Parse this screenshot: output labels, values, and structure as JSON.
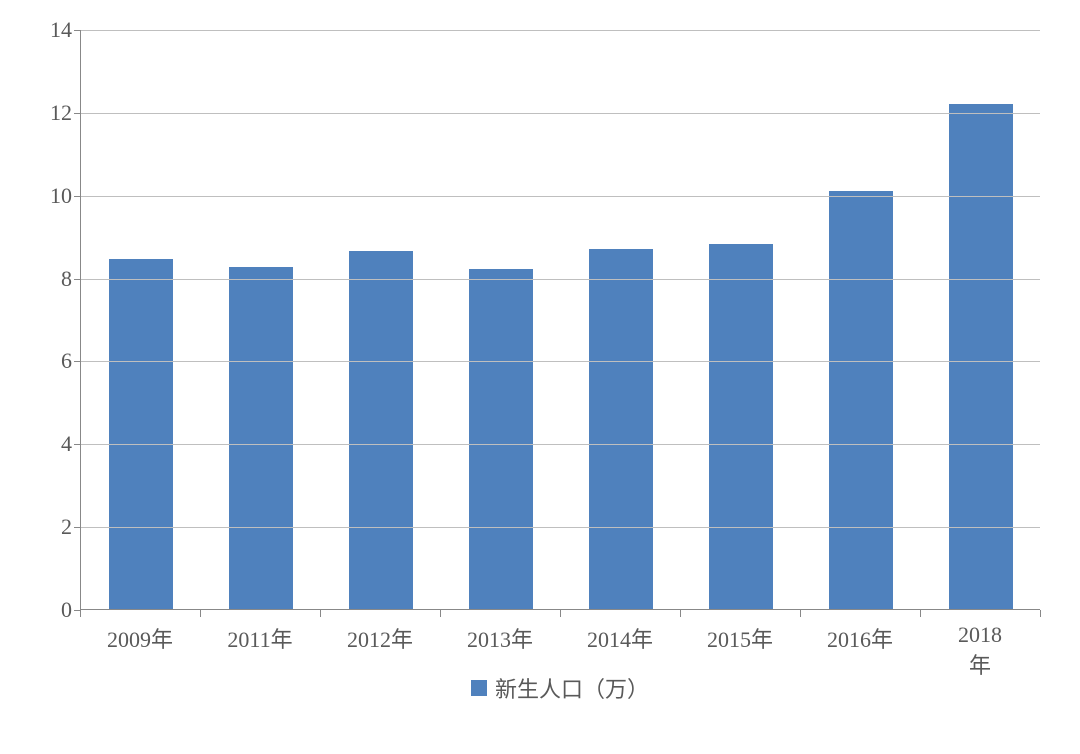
{
  "chart": {
    "type": "bar",
    "background_color": "#ffffff",
    "plot_border_color": "#888888",
    "grid_color": "#bfbfbf",
    "font_family": "SimSun",
    "axis_label_color": "#595959",
    "axis_label_fontsize": 22,
    "y": {
      "min": 0,
      "max": 14,
      "tick_step": 2,
      "ticks": [
        0,
        2,
        4,
        6,
        8,
        10,
        12,
        14
      ]
    },
    "x": {
      "categories": [
        "2009年",
        "2011年",
        "2012年",
        "2013年",
        "2014年",
        "2015年",
        "2016年",
        "2018年"
      ]
    },
    "series": {
      "name": "新生人口（万）",
      "color": "#4f81bd",
      "bar_width_ratio": 0.54,
      "values": [
        8.45,
        8.25,
        8.65,
        8.2,
        8.7,
        8.8,
        10.1,
        12.2
      ]
    },
    "legend": {
      "position": "bottom",
      "swatch_width": 16,
      "swatch_height": 16,
      "fontsize": 22,
      "text_color": "#595959"
    }
  }
}
